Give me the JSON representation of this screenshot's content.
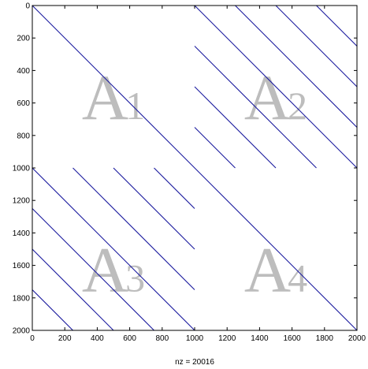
{
  "chart_data": {
    "type": "scatter",
    "subtype": "sparsity-pattern",
    "xlabel": "nz = 20016",
    "ylabel": "",
    "title": "",
    "xlim": [
      0,
      2000
    ],
    "ylim": [
      0,
      2000
    ],
    "y_reversed": true,
    "x_ticks": [
      0,
      200,
      400,
      600,
      800,
      1000,
      1200,
      1400,
      1600,
      1800,
      2000
    ],
    "y_ticks": [
      0,
      200,
      400,
      600,
      800,
      1000,
      1200,
      1400,
      1600,
      1800,
      2000
    ],
    "series_color": "#1a1a9e",
    "diagonals": [
      {
        "x": [
          0,
          2000
        ],
        "y": [
          0,
          2000
        ]
      },
      {
        "x": [
          1000,
          2000
        ],
        "y": [
          0,
          1000
        ]
      },
      {
        "x": [
          1250,
          2000
        ],
        "y": [
          0,
          750
        ]
      },
      {
        "x": [
          1500,
          2000
        ],
        "y": [
          0,
          500
        ]
      },
      {
        "x": [
          1750,
          2000
        ],
        "y": [
          0,
          250
        ]
      },
      {
        "x": [
          1000,
          1750
        ],
        "y": [
          250,
          1000
        ]
      },
      {
        "x": [
          1000,
          1500
        ],
        "y": [
          500,
          1000
        ]
      },
      {
        "x": [
          1000,
          1250
        ],
        "y": [
          750,
          1000
        ]
      },
      {
        "x": [
          0,
          1000
        ],
        "y": [
          1000,
          2000
        ]
      },
      {
        "x": [
          0,
          750
        ],
        "y": [
          1250,
          2000
        ]
      },
      {
        "x": [
          0,
          500
        ],
        "y": [
          1500,
          2000
        ]
      },
      {
        "x": [
          0,
          250
        ],
        "y": [
          1750,
          2000
        ]
      },
      {
        "x": [
          250,
          1000
        ],
        "y": [
          1000,
          1750
        ]
      },
      {
        "x": [
          500,
          1000
        ],
        "y": [
          1000,
          1500
        ]
      },
      {
        "x": [
          750,
          1000
        ],
        "y": [
          1000,
          1250
        ]
      }
    ],
    "block_labels": [
      {
        "base": "A",
        "sub": "1",
        "x": 500,
        "y": 700
      },
      {
        "base": "A",
        "sub": "2",
        "x": 1500,
        "y": 700
      },
      {
        "base": "A",
        "sub": "3",
        "x": 500,
        "y": 1760
      },
      {
        "base": "A",
        "sub": "4",
        "x": 1500,
        "y": 1760
      }
    ],
    "grid": false,
    "legend": "none"
  }
}
